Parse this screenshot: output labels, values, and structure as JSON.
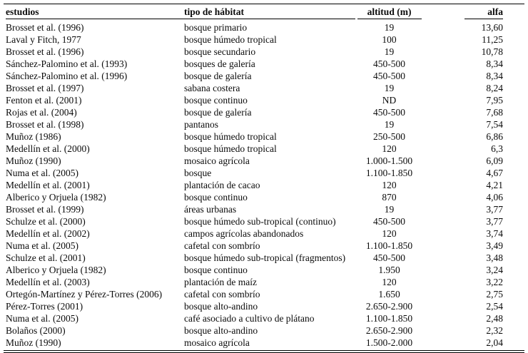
{
  "table": {
    "headers": [
      "estudios",
      "tipo de hábitat",
      "altitud (m)",
      "alfa"
    ],
    "rows": [
      [
        "Brosset et al. (1996)",
        "bosque primario",
        "19",
        "13,60"
      ],
      [
        "Laval y Fitch, 1977",
        "bosque húmedo tropical",
        "100",
        "11,25"
      ],
      [
        "Brosset et al. (1996)",
        "bosque secundario",
        "19",
        "10,78"
      ],
      [
        "Sánchez-Palomino et al. (1993)",
        "bosques de galería",
        "450-500",
        "8,34"
      ],
      [
        "Sánchez-Palomino et al. (1996)",
        "bosque de galería",
        "450-500",
        "8,34"
      ],
      [
        "Brosset et al. (1997)",
        "sabana costera",
        "19",
        "8,24"
      ],
      [
        "Fenton et al. (2001)",
        "bosque continuo",
        "ND",
        "7,95"
      ],
      [
        "Rojas et al. (2004)",
        "bosque de galería",
        "450-500",
        "7,68"
      ],
      [
        "Brosset et al. (1998)",
        "pantanos",
        "19",
        "7,54"
      ],
      [
        "Muñoz (1986)",
        "bosque húmedo tropical",
        "250-500",
        "6,86"
      ],
      [
        "Medellín et al. (2000)",
        "bosque húmedo tropical",
        "120",
        "6,3"
      ],
      [
        "Muñoz (1990)",
        "mosaico agrícola",
        "1.000-1.500",
        "6,09"
      ],
      [
        "Numa et al. (2005)",
        "bosque",
        "1.100-1.850",
        "4,67"
      ],
      [
        "Medellín et al. (2001)",
        "plantación de cacao",
        "120",
        "4,21"
      ],
      [
        "Alberico y Orjuela (1982)",
        "bosque continuo",
        "870",
        "4,06"
      ],
      [
        "Brosset et al. (1999)",
        "áreas urbanas",
        "19",
        "3,77"
      ],
      [
        "Schulze et al. (2000)",
        "bosque húmedo sub-tropical (continuo)",
        "450-500",
        "3,77"
      ],
      [
        "Medellín et al. (2002)",
        "campos agrícolas abandonados",
        "120",
        "3,74"
      ],
      [
        "Numa et al. (2005)",
        "cafetal con sombrío",
        "1.100-1.850",
        "3,49"
      ],
      [
        "Schulze et al. (2001)",
        "bosque húmedo sub-tropical (fragmentos)",
        "450-500",
        "3,48"
      ],
      [
        "Alberico y Orjuela (1982)",
        "bosque continuo",
        "1.950",
        "3,24"
      ],
      [
        "Medellín et al. (2003)",
        "plantación de maíz",
        "120",
        "3,22"
      ],
      [
        "Ortegón-Martínez y Pérez-Torres (2006)",
        "cafetal con sombrío",
        "1.650",
        "2,75"
      ],
      [
        "Pérez-Torres (2001)",
        "bosque alto-andino",
        "2.650-2.900",
        "2,54"
      ],
      [
        "Numa et al. (2005)",
        "café asociado a cultivo de plátano",
        "1.100-1.850",
        "2,48"
      ],
      [
        "Bolaños (2000)",
        "bosque alto-andino",
        "2.650-2.900",
        "2,32"
      ],
      [
        "Muñoz (1990)",
        "mosaico agrícola",
        "1.500-2.000",
        "2,04"
      ]
    ]
  }
}
